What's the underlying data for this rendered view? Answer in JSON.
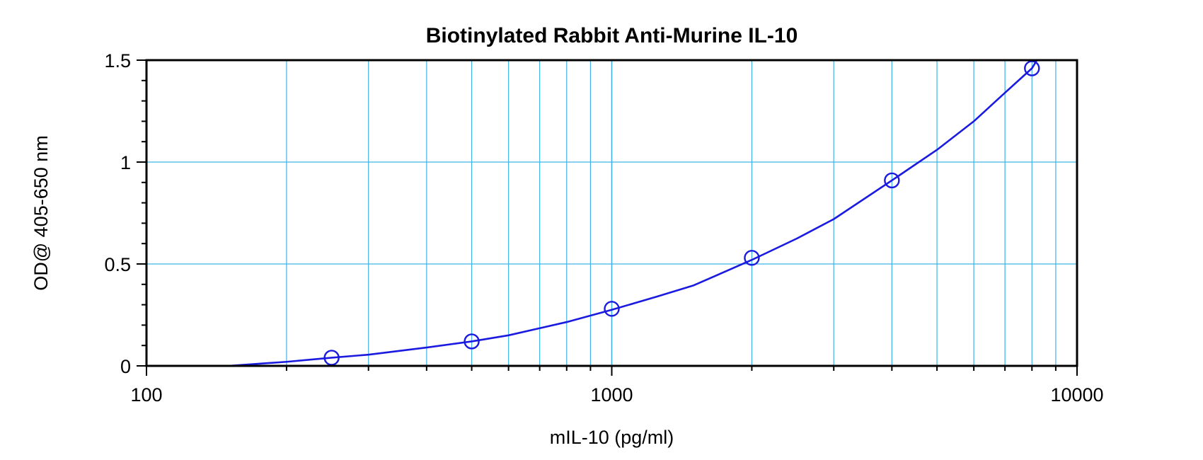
{
  "chart_data": {
    "type": "scatter",
    "title": "Biotinylated Rabbit Anti-Murine IL-10",
    "xlabel": "mIL-10 (pg/ml)",
    "ylabel": "OD@ 405-650 nm",
    "x_scale": "log",
    "xlim": [
      100,
      10000
    ],
    "ylim": [
      0,
      1.5
    ],
    "x_ticks": [
      100,
      1000,
      10000
    ],
    "x_tick_labels": [
      "100",
      "1000",
      "10000"
    ],
    "y_ticks": [
      0,
      0.5,
      1,
      1.5
    ],
    "y_tick_labels": [
      "0",
      "0.5",
      "1",
      "1.5"
    ],
    "grid": true,
    "series": [
      {
        "x": [
          250,
          500,
          1000,
          2000,
          4000,
          8000
        ],
        "y": [
          0.04,
          0.12,
          0.28,
          0.53,
          0.91,
          1.46
        ]
      }
    ],
    "fit_curve": {
      "x": [
        150,
        200,
        250,
        300,
        400,
        500,
        600,
        800,
        1000,
        1250,
        1500,
        2000,
        2500,
        3000,
        4000,
        5000,
        6000,
        7000,
        8000,
        8200
      ],
      "y": [
        0.0,
        0.02,
        0.04,
        0.055,
        0.09,
        0.12,
        0.15,
        0.215,
        0.275,
        0.34,
        0.395,
        0.52,
        0.625,
        0.72,
        0.91,
        1.06,
        1.2,
        1.34,
        1.46,
        1.5
      ]
    },
    "colors": {
      "series": "#1a1ae0",
      "grid": "#3fb3e8",
      "axis": "#000000"
    }
  }
}
